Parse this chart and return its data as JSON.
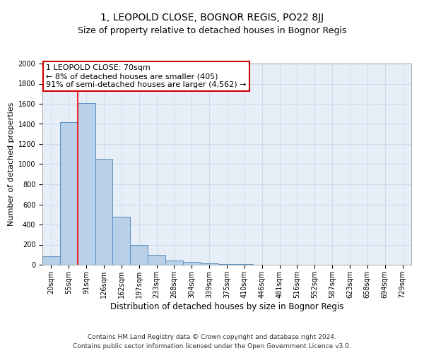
{
  "title": "1, LEOPOLD CLOSE, BOGNOR REGIS, PO22 8JJ",
  "subtitle": "Size of property relative to detached houses in Bognor Regis",
  "xlabel": "Distribution of detached houses by size in Bognor Regis",
  "ylabel": "Number of detached properties",
  "categories": [
    "20sqm",
    "55sqm",
    "91sqm",
    "126sqm",
    "162sqm",
    "197sqm",
    "233sqm",
    "268sqm",
    "304sqm",
    "339sqm",
    "375sqm",
    "410sqm",
    "446sqm",
    "481sqm",
    "516sqm",
    "552sqm",
    "587sqm",
    "623sqm",
    "658sqm",
    "694sqm",
    "729sqm"
  ],
  "values": [
    85,
    1420,
    1610,
    1050,
    480,
    200,
    100,
    45,
    25,
    15,
    10,
    5,
    0,
    0,
    0,
    0,
    0,
    0,
    0,
    0,
    0
  ],
  "bar_color": "#b8d0e8",
  "bar_edgecolor": "#5a8fc0",
  "red_line_x": 1.5,
  "annotation_text": "1 LEOPOLD CLOSE: 70sqm\n← 8% of detached houses are smaller (405)\n91% of semi-detached houses are larger (4,562) →",
  "annotation_box_facecolor": "#ffffff",
  "annotation_box_edgecolor": "#cc0000",
  "ylim": [
    0,
    2000
  ],
  "yticks": [
    0,
    200,
    400,
    600,
    800,
    1000,
    1200,
    1400,
    1600,
    1800,
    2000
  ],
  "grid_color": "#c8d4e8",
  "background_color": "#e8eef8",
  "footnote_line1": "Contains HM Land Registry data © Crown copyright and database right 2024.",
  "footnote_line2": "Contains public sector information licensed under the Open Government Licence v3.0.",
  "title_fontsize": 10,
  "subtitle_fontsize": 9,
  "xlabel_fontsize": 8.5,
  "ylabel_fontsize": 8,
  "tick_fontsize": 7,
  "annotation_fontsize": 8,
  "footnote_fontsize": 6.5
}
